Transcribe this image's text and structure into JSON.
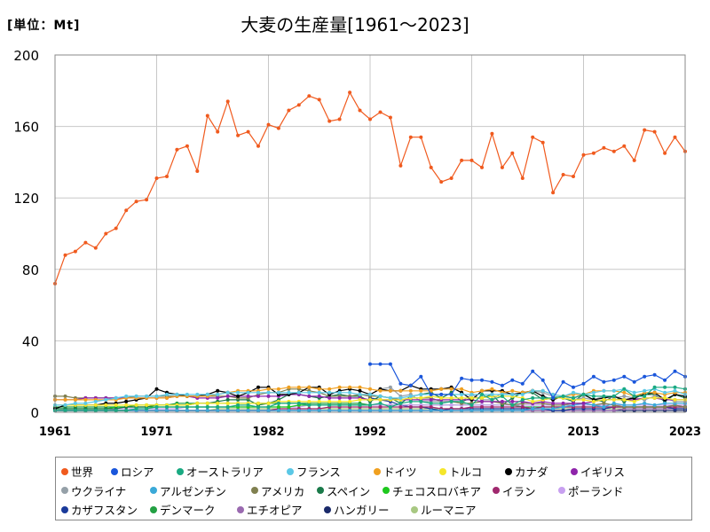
{
  "header": {
    "unit_label": "[単位：Mt]",
    "title": "大麦の生産量[1961～2023]"
  },
  "chart_data": {
    "type": "line",
    "title": "大麦の生産量[1961～2023]",
    "ylabel": "[単位：Mt]",
    "xlabel": "",
    "xlim": [
      1961,
      2023
    ],
    "ylim": [
      0,
      200
    ],
    "xticks": [
      "1961",
      "1971",
      "1982",
      "1992",
      "2002",
      "2013",
      "2023"
    ],
    "yticks": [
      "0",
      "40",
      "80",
      "120",
      "160",
      "200"
    ],
    "grid": true,
    "legend_position": "bottom",
    "series": [
      {
        "name": "世界",
        "color": "#f05a1e",
        "start": 1961,
        "values": [
          72,
          88,
          90,
          95,
          92,
          100,
          103,
          113,
          118,
          119,
          131,
          132,
          147,
          149,
          135,
          166,
          157,
          174,
          155,
          157,
          149,
          161,
          159,
          169,
          172,
          177,
          175,
          163,
          164,
          179,
          169,
          164,
          168,
          165,
          138,
          154,
          154,
          137,
          129,
          131,
          141,
          141,
          137,
          156,
          137,
          145,
          131,
          154,
          151,
          123,
          133,
          132,
          144,
          145,
          148,
          146,
          149,
          141,
          158,
          157,
          145,
          154,
          146
        ]
      },
      {
        "name": "ロシア",
        "color": "#1a56db",
        "start": 1992,
        "values": [
          27,
          27,
          27,
          16,
          15,
          20,
          10,
          10,
          10,
          19,
          18,
          18,
          17,
          15,
          18,
          16,
          23,
          18,
          8,
          17,
          14,
          16,
          20,
          17,
          18,
          20,
          17,
          20,
          21,
          18,
          23,
          20
        ]
      },
      {
        "name": "オーストラリア",
        "color": "#1aaa82",
        "start": 1961,
        "values": [
          1,
          1,
          1,
          1,
          1,
          1,
          1,
          1,
          2,
          2,
          3,
          3,
          3,
          3,
          3,
          3,
          3,
          3,
          4,
          4,
          3,
          3,
          5,
          5,
          5,
          4,
          4,
          4,
          4,
          4,
          4,
          4,
          5,
          3,
          5,
          6,
          6,
          5,
          5,
          6,
          6,
          4,
          10,
          7,
          9,
          4,
          7,
          8,
          8,
          8,
          9,
          8,
          10,
          9,
          9,
          9,
          13,
          9,
          9,
          14,
          14,
          14,
          13
        ]
      },
      {
        "name": "フランス",
        "color": "#5bc8e6",
        "start": 1961,
        "values": [
          4,
          4,
          5,
          5,
          6,
          7,
          8,
          9,
          9,
          9,
          9,
          10,
          10,
          10,
          10,
          10,
          10,
          11,
          11,
          11,
          11,
          11,
          11,
          11,
          11,
          11,
          11,
          11,
          11,
          11,
          10,
          10,
          9,
          8,
          8,
          9,
          10,
          10,
          10,
          10,
          10,
          10,
          10,
          10,
          10,
          10,
          10,
          12,
          12,
          10,
          9,
          11,
          10,
          11,
          12,
          12,
          13,
          11,
          12,
          13,
          11,
          12,
          10
        ]
      },
      {
        "name": "ドイツ",
        "color": "#f0a020",
        "start": 1961,
        "values": [
          7,
          7,
          7,
          7,
          7,
          7,
          7,
          8,
          8,
          8,
          8,
          8,
          9,
          9,
          9,
          9,
          10,
          11,
          12,
          12,
          12,
          13,
          13,
          14,
          14,
          14,
          13,
          13,
          14,
          14,
          14,
          13,
          12,
          12,
          12,
          12,
          12,
          12,
          13,
          13,
          13,
          11,
          12,
          13,
          11,
          12,
          11,
          12,
          12,
          10,
          9,
          10,
          10,
          12,
          12,
          12,
          11,
          9,
          11,
          11,
          10,
          11,
          11
        ]
      },
      {
        "name": "トルコ",
        "color": "#f5e62a",
        "start": 1961,
        "values": [
          4,
          4,
          4,
          4,
          4,
          4,
          4,
          4,
          4,
          4,
          4,
          4,
          4,
          4,
          5,
          5,
          5,
          5,
          5,
          5,
          5,
          5,
          6,
          6,
          6,
          6,
          6,
          6,
          6,
          6,
          7,
          7,
          7,
          7,
          7,
          8,
          8,
          9,
          8,
          8,
          8,
          8,
          8,
          9,
          9,
          9,
          8,
          6,
          7,
          8,
          8,
          7,
          7,
          6,
          7,
          7,
          7,
          6,
          8,
          8,
          8,
          7,
          7
        ]
      },
      {
        "name": "カナダ",
        "color": "#000000",
        "start": 1961,
        "values": [
          2,
          4,
          4,
          4,
          4,
          5,
          5,
          6,
          7,
          8,
          13,
          11,
          10,
          9,
          9,
          10,
          12,
          11,
          9,
          11,
          14,
          14,
          10,
          10,
          11,
          14,
          14,
          10,
          12,
          13,
          12,
          10,
          13,
          12,
          12,
          15,
          13,
          13,
          13,
          14,
          11,
          7,
          12,
          12,
          12,
          10,
          11,
          12,
          9,
          7,
          9,
          8,
          10,
          7,
          8,
          9,
          7,
          8,
          10,
          11,
          7,
          10,
          9
        ]
      },
      {
        "name": "イギリス",
        "color": "#8e24aa",
        "start": 1961,
        "values": [
          7,
          7,
          7,
          8,
          8,
          8,
          8,
          8,
          8,
          8,
          8,
          8,
          9,
          9,
          8,
          8,
          8,
          9,
          9,
          9,
          9,
          9,
          9,
          10,
          10,
          9,
          9,
          8,
          8,
          8,
          8,
          7,
          7,
          7,
          7,
          7,
          7,
          7,
          7,
          7,
          7,
          7,
          6,
          6,
          6,
          6,
          6,
          5,
          6,
          5,
          5,
          5,
          5,
          6,
          7,
          7,
          7,
          7,
          8,
          8,
          7,
          7,
          7
        ]
      },
      {
        "name": "ウクライナ",
        "color": "#95a0a8",
        "start": 1992,
        "values": [
          10,
          13,
          14,
          9,
          10,
          6,
          6,
          6,
          6,
          6,
          10,
          7,
          7,
          11,
          10,
          11,
          12,
          11,
          9,
          8,
          7,
          8,
          7,
          9,
          8,
          9,
          8,
          7,
          9,
          8,
          6,
          6
        ]
      },
      {
        "name": "アルゼンチン",
        "color": "#3aa9d8",
        "start": 1961,
        "values": [
          1,
          1,
          1,
          1,
          1,
          1,
          1,
          1,
          1,
          1,
          1,
          1,
          1,
          1,
          1,
          1,
          1,
          1,
          1,
          1,
          1,
          1,
          1,
          1,
          1,
          1,
          1,
          1,
          1,
          1,
          1,
          1,
          1,
          1,
          1,
          1,
          1,
          1,
          1,
          1,
          1,
          1,
          1,
          1,
          1,
          1,
          1,
          2,
          2,
          2,
          3,
          4,
          5,
          4,
          3,
          5,
          4,
          4,
          5,
          4,
          5,
          5,
          5
        ]
      },
      {
        "name": "アメリカ",
        "color": "#808050",
        "start": 1961,
        "values": [
          9,
          9,
          8,
          8,
          8,
          8,
          8,
          8,
          9,
          9,
          9,
          9,
          9,
          9,
          9,
          9,
          9,
          9,
          8,
          8,
          10,
          11,
          11,
          13,
          13,
          12,
          11,
          9,
          9,
          9,
          10,
          9,
          9,
          8,
          7,
          8,
          8,
          8,
          6,
          6,
          5,
          5,
          6,
          6,
          5,
          4,
          5,
          5,
          5,
          4,
          4,
          5,
          5,
          4,
          5,
          4,
          3,
          3,
          3,
          3,
          3,
          4,
          3
        ]
      },
      {
        "name": "スペイン",
        "color": "#1a7a4a",
        "start": 1961,
        "values": [
          2,
          2,
          2,
          2,
          2,
          2,
          2,
          3,
          3,
          3,
          4,
          4,
          4,
          4,
          5,
          5,
          6,
          7,
          7,
          7,
          4,
          5,
          7,
          10,
          10,
          9,
          8,
          9,
          10,
          9,
          9,
          6,
          9,
          8,
          5,
          9,
          10,
          11,
          8,
          11,
          6,
          8,
          8,
          10,
          4,
          8,
          11,
          11,
          7,
          8,
          8,
          6,
          10,
          7,
          6,
          9,
          6,
          9,
          10,
          10,
          6,
          10,
          8
        ]
      },
      {
        "name": "チェコスロバキア",
        "color": "#1ec81e",
        "start": 1961,
        "values": [
          2,
          2,
          2,
          2,
          2,
          2,
          3,
          3,
          3,
          3,
          3,
          3,
          3,
          3,
          3,
          3,
          3,
          3,
          3,
          3,
          3,
          3,
          3,
          3,
          4,
          4,
          4,
          4,
          4,
          4,
          4,
          4
        ]
      },
      {
        "name": "イラン",
        "color": "#a0286e",
        "start": 1961,
        "values": [
          1,
          1,
          1,
          1,
          1,
          1,
          1,
          1,
          1,
          1,
          1,
          1,
          1,
          1,
          1,
          1,
          1,
          1,
          1,
          1,
          1,
          1,
          2,
          2,
          2,
          2,
          2,
          3,
          3,
          3,
          3,
          3,
          3,
          3,
          3,
          3,
          3,
          3,
          2,
          2,
          2,
          3,
          3,
          3,
          3,
          3,
          3,
          2,
          3,
          3,
          3,
          3,
          3,
          3,
          3,
          3,
          3,
          3,
          3,
          3,
          3,
          3,
          3
        ]
      },
      {
        "name": "ポーランド",
        "color": "#c8a0f0",
        "start": 1961,
        "values": [
          1,
          1,
          1,
          1,
          1,
          1,
          2,
          2,
          2,
          2,
          2,
          2,
          2,
          3,
          3,
          3,
          3,
          3,
          3,
          3,
          3,
          3,
          3,
          3,
          3,
          4,
          4,
          4,
          4,
          4,
          4,
          4,
          4,
          4,
          4,
          4,
          4,
          4,
          4,
          4,
          4,
          4,
          4,
          4,
          4,
          4,
          4,
          4,
          4,
          4,
          4,
          4,
          4,
          4,
          4,
          4,
          4,
          4,
          4,
          4,
          4,
          4,
          4
        ]
      },
      {
        "name": "カザフスタン",
        "color": "#1a3a9a",
        "start": 1992,
        "values": [
          8,
          7,
          6,
          4,
          3,
          3,
          2,
          1,
          2,
          2,
          2,
          2,
          2,
          2,
          2,
          2,
          2,
          2,
          1,
          1,
          2,
          2,
          2,
          2,
          3,
          3,
          3,
          3,
          3,
          3,
          2,
          2
        ]
      },
      {
        "name": "デンマーク",
        "color": "#23a043",
        "start": 1961,
        "values": [
          3,
          3,
          3,
          3,
          3,
          3,
          3,
          3,
          4,
          4,
          4,
          4,
          5,
          5,
          5,
          5,
          5,
          5,
          5,
          5,
          5,
          5,
          5,
          5,
          5,
          5,
          5,
          5,
          5,
          5,
          5,
          4,
          4,
          4,
          4,
          4,
          4,
          4,
          4,
          4,
          4,
          4,
          4,
          4,
          4,
          4,
          3,
          3,
          3,
          3,
          3,
          3,
          3,
          3,
          3,
          3,
          3,
          3,
          3,
          3,
          3,
          3,
          3
        ]
      },
      {
        "name": "エチオピア",
        "color": "#9a6ab0",
        "start": 1961,
        "values": [
          1,
          1,
          1,
          1,
          1,
          1,
          1,
          1,
          1,
          1,
          1,
          1,
          1,
          1,
          1,
          1,
          1,
          1,
          1,
          1,
          1,
          1,
          1,
          1,
          1,
          1,
          1,
          1,
          1,
          1,
          1,
          1,
          1,
          1,
          1,
          1,
          1,
          1,
          1,
          1,
          1,
          1,
          1,
          1,
          1,
          1,
          1,
          1,
          1,
          1,
          1,
          1,
          1,
          1,
          1,
          1,
          2,
          2,
          2,
          2,
          2,
          2,
          2
        ]
      },
      {
        "name": "ハンガリー",
        "color": "#1a2a6a",
        "start": 1961,
        "values": [
          1,
          1,
          1,
          1,
          1,
          1,
          1,
          1,
          1,
          1,
          1,
          1,
          1,
          1,
          1,
          1,
          1,
          1,
          1,
          1,
          1,
          1,
          1,
          1,
          1,
          1,
          1,
          1,
          1,
          1,
          1,
          1,
          1,
          1,
          1,
          1,
          1,
          1,
          1,
          1,
          1,
          1,
          1,
          1,
          1,
          1,
          1,
          1,
          1,
          1,
          1,
          1,
          1,
          1,
          1,
          1,
          1,
          1,
          1,
          1,
          1,
          1,
          1
        ]
      },
      {
        "name": "ルーマニア",
        "color": "#a8c882",
        "start": 1961,
        "values": [
          1,
          1,
          1,
          1,
          1,
          1,
          1,
          1,
          1,
          1,
          1,
          1,
          1,
          1,
          1,
          1,
          2,
          2,
          2,
          2,
          2,
          2,
          2,
          2,
          2,
          2,
          2,
          2,
          2,
          2,
          2,
          2,
          2,
          2,
          2,
          2,
          2,
          2,
          2,
          2,
          2,
          2,
          2,
          2,
          2,
          2,
          2,
          2,
          2,
          2,
          2,
          2,
          2,
          2,
          2,
          2,
          2,
          2,
          2,
          2,
          2,
          2,
          2
        ]
      }
    ]
  }
}
